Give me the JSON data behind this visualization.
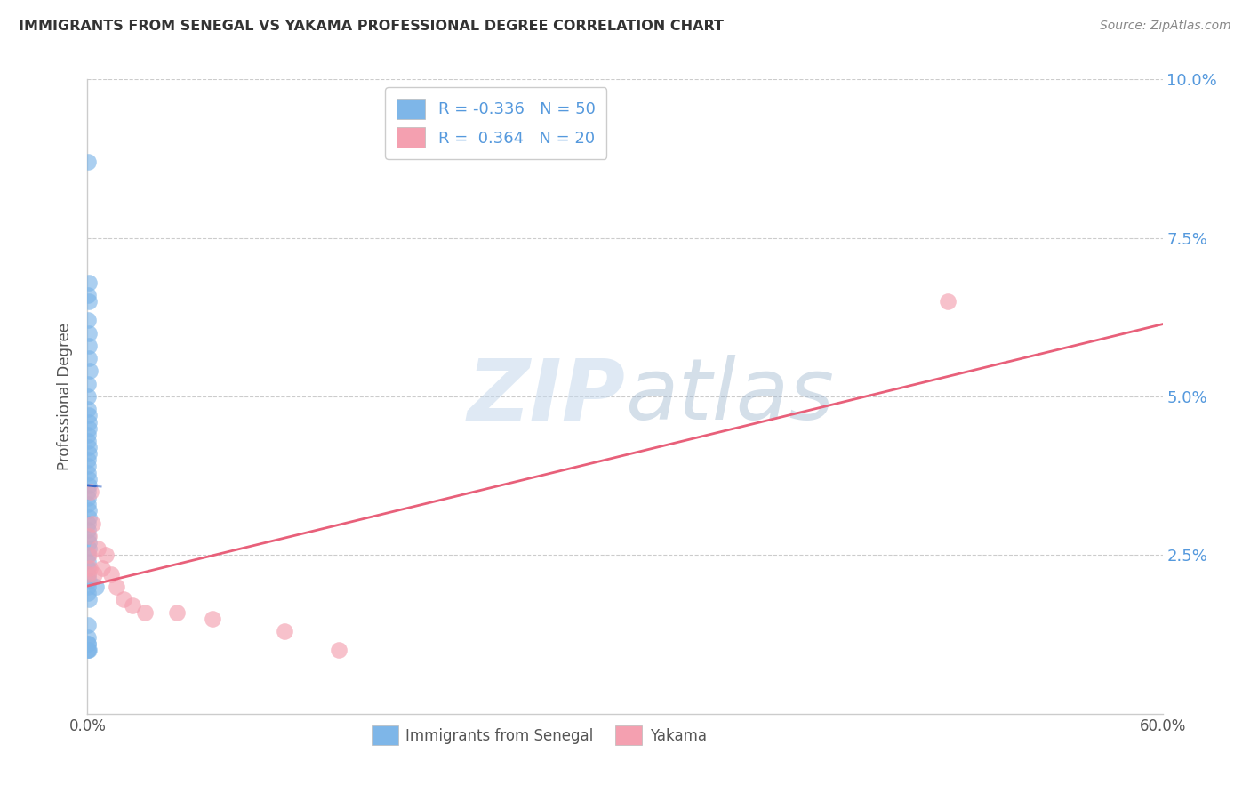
{
  "title": "IMMIGRANTS FROM SENEGAL VS YAKAMA PROFESSIONAL DEGREE CORRELATION CHART",
  "source": "Source: ZipAtlas.com",
  "ylabel": "Professional Degree",
  "xlim": [
    0.0,
    0.6
  ],
  "ylim": [
    0.0,
    0.1
  ],
  "ytick_vals": [
    0.0,
    0.025,
    0.05,
    0.075,
    0.1
  ],
  "ytick_labels_right": [
    "",
    "2.5%",
    "5.0%",
    "7.5%",
    "10.0%"
  ],
  "xtick_vals": [
    0.0,
    0.1,
    0.2,
    0.3,
    0.4,
    0.5,
    0.6
  ],
  "xtick_labels": [
    "0.0%",
    "",
    "",
    "",
    "",
    "",
    "60.0%"
  ],
  "watermark_text": "ZIPatlas",
  "color_blue": "#7EB6E8",
  "color_pink": "#F4A0B0",
  "line_blue": "#3A6AC8",
  "line_pink": "#E8607A",
  "title_color": "#333333",
  "source_color": "#888888",
  "right_tick_color": "#5599DD",
  "senegal_x": [
    0.0005,
    0.001,
    0.0005,
    0.0008,
    0.0003,
    0.0006,
    0.0008,
    0.001,
    0.0012,
    0.0005,
    0.0003,
    0.0005,
    0.0008,
    0.0006,
    0.001,
    0.0003,
    0.0005,
    0.0008,
    0.001,
    0.0005,
    0.0003,
    0.0005,
    0.0006,
    0.0008,
    0.0003,
    0.0003,
    0.0005,
    0.0006,
    0.0008,
    0.0003,
    0.0003,
    0.0005,
    0.0006,
    0.0008,
    0.0005,
    0.0003,
    0.0004,
    0.0005,
    0.0006,
    0.0004,
    0.0005,
    0.0006,
    0.0003,
    0.0005,
    0.0048,
    0.0003,
    0.0005,
    0.0006,
    0.0004,
    0.0005
  ],
  "senegal_y": [
    0.087,
    0.068,
    0.066,
    0.065,
    0.062,
    0.06,
    0.058,
    0.056,
    0.054,
    0.052,
    0.05,
    0.048,
    0.047,
    0.046,
    0.045,
    0.044,
    0.043,
    0.042,
    0.041,
    0.04,
    0.039,
    0.038,
    0.037,
    0.036,
    0.035,
    0.034,
    0.033,
    0.032,
    0.031,
    0.03,
    0.029,
    0.028,
    0.027,
    0.026,
    0.025,
    0.024,
    0.023,
    0.022,
    0.021,
    0.02,
    0.019,
    0.018,
    0.014,
    0.012,
    0.02,
    0.011,
    0.01,
    0.01,
    0.01,
    0.011
  ],
  "yakama_x": [
    0.0005,
    0.0008,
    0.001,
    0.0015,
    0.002,
    0.003,
    0.004,
    0.0055,
    0.008,
    0.01,
    0.013,
    0.016,
    0.02,
    0.025,
    0.032,
    0.05,
    0.07,
    0.11,
    0.14,
    0.48
  ],
  "yakama_y": [
    0.022,
    0.025,
    0.028,
    0.023,
    0.035,
    0.03,
    0.022,
    0.026,
    0.023,
    0.025,
    0.022,
    0.02,
    0.018,
    0.017,
    0.016,
    0.016,
    0.015,
    0.013,
    0.01,
    0.065
  ],
  "blue_line_x0": 0.0,
  "blue_line_x1": 0.006,
  "pink_line_x0": 0.0,
  "pink_line_x1": 0.6,
  "pink_line_y0": 0.022,
  "pink_line_y1": 0.05
}
